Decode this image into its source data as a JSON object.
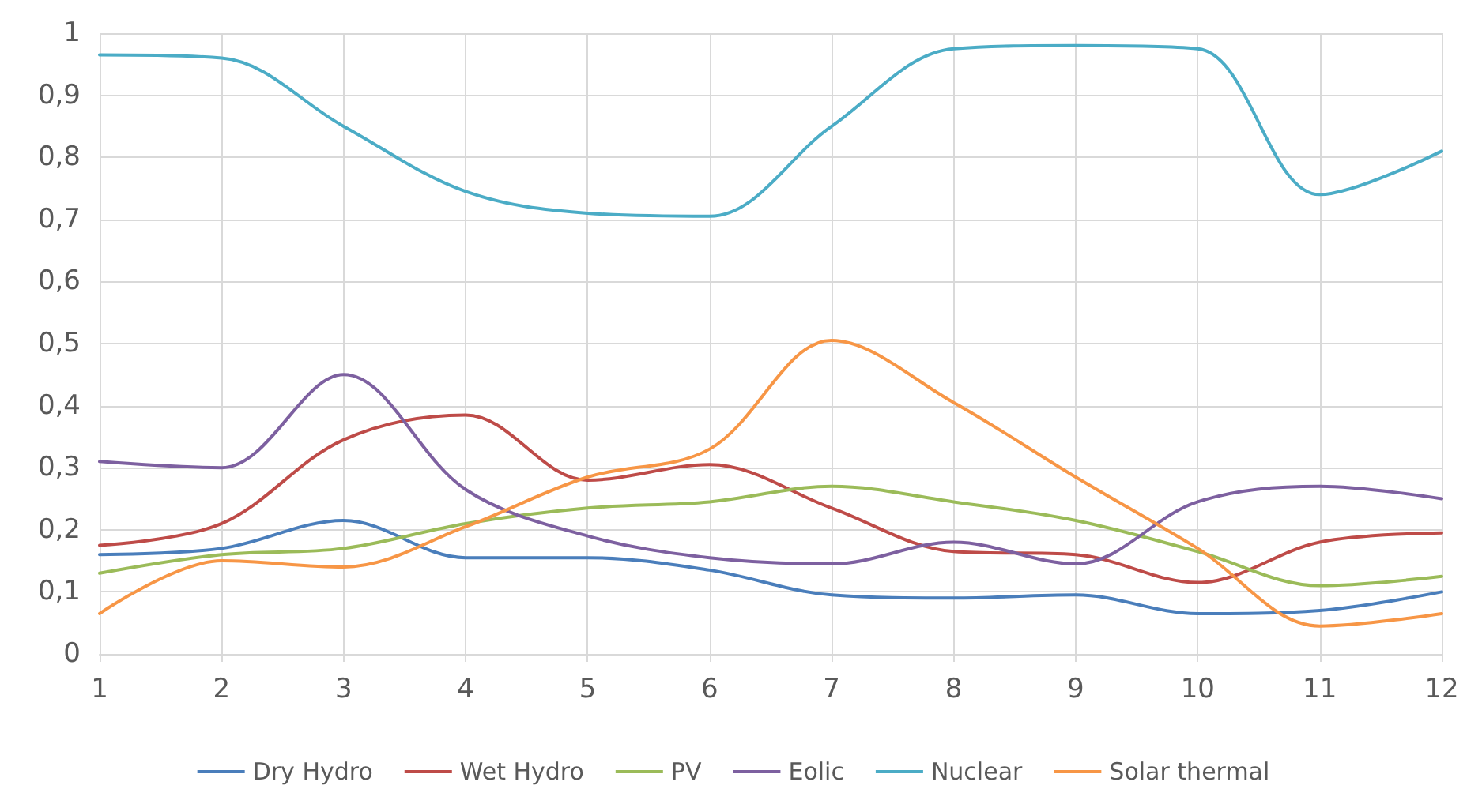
{
  "chart_data": {
    "type": "line",
    "x": [
      1,
      2,
      3,
      4,
      5,
      6,
      7,
      8,
      9,
      10,
      11,
      12
    ],
    "xlim": [
      1,
      12
    ],
    "xticks": [
      1,
      2,
      3,
      4,
      5,
      6,
      7,
      8,
      9,
      10,
      11,
      12
    ],
    "ylim": [
      0,
      1
    ],
    "yticks": [
      0,
      {
        "value": 0.1,
        "label": "0,1"
      },
      {
        "value": 0.2,
        "label": "0,2"
      },
      {
        "value": 0.3,
        "label": "0,3"
      },
      {
        "value": 0.4,
        "label": "0,4"
      },
      {
        "value": 0.5,
        "label": "0,5"
      },
      {
        "value": 0.6,
        "label": "0,6"
      },
      {
        "value": 0.7,
        "label": "0,7"
      },
      {
        "value": 0.8,
        "label": "0,8"
      },
      {
        "value": 0.9,
        "label": "0,9"
      },
      1
    ],
    "grid": true,
    "legend": "bottom",
    "marker": "none",
    "line_style": "solid",
    "series": [
      {
        "name": "Dry Hydro",
        "color": "#4a7ebb",
        "values": [
          0.16,
          0.17,
          0.215,
          0.155,
          0.155,
          0.135,
          0.095,
          0.09,
          0.095,
          0.065,
          0.07,
          0.1
        ]
      },
      {
        "name": "Wet Hydro",
        "color": "#be4b48",
        "values": [
          0.175,
          0.21,
          0.345,
          0.385,
          0.28,
          0.305,
          0.235,
          0.165,
          0.16,
          0.115,
          0.18,
          0.195
        ]
      },
      {
        "name": "PV",
        "color": "#9bbb59",
        "values": [
          0.13,
          0.16,
          0.17,
          0.21,
          0.235,
          0.245,
          0.27,
          0.245,
          0.215,
          0.165,
          0.11,
          0.125
        ]
      },
      {
        "name": "Eolic",
        "color": "#7d60a0",
        "values": [
          0.31,
          0.3,
          0.45,
          0.265,
          0.19,
          0.155,
          0.145,
          0.18,
          0.145,
          0.245,
          0.27,
          0.25
        ]
      },
      {
        "name": "Nuclear",
        "color": "#4bacc6",
        "values": [
          0.965,
          0.96,
          0.85,
          0.745,
          0.71,
          0.705,
          0.85,
          0.975,
          0.98,
          0.975,
          0.74,
          0.81
        ]
      },
      {
        "name": "Solar thermal",
        "color": "#f79646",
        "values": [
          0.065,
          0.15,
          0.14,
          0.205,
          0.285,
          0.33,
          0.505,
          0.405,
          0.285,
          0.17,
          0.045,
          0.065
        ]
      }
    ]
  }
}
